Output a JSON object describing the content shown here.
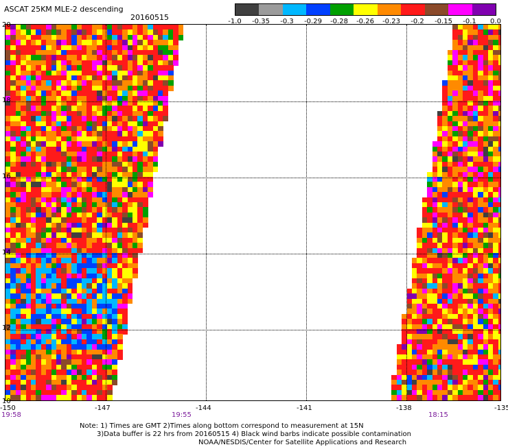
{
  "title": "ASCAT 25KM MLE-2 descending",
  "date": "20160515",
  "legend": {
    "labels": [
      "-1.0",
      "-0.35",
      "-0.3",
      "-0.29",
      "-0.28",
      "-0.26",
      "-0.23",
      "-0.2",
      "-0.15",
      "-0.1",
      "0.0"
    ],
    "colors": [
      "#404040",
      "#9b9b9b",
      "#00b8ff",
      "#0040ff",
      "#00a000",
      "#ffff00",
      "#ff8a00",
      "#ff1a1a",
      "#8b4a2a",
      "#ff00ff",
      "#8000b0"
    ]
  },
  "axes": {
    "lat_labels": [
      "20",
      "18",
      "16",
      "14",
      "12",
      "10"
    ],
    "lon_labels": [
      "-150",
      "-147",
      "-144",
      "-141",
      "-138",
      "-135"
    ],
    "time_labels": [
      "19:58",
      "19:55",
      "18:15"
    ]
  },
  "notes": [
    "Note: 1) Times are GMT 2)Times along bottom correspond to measurement at 15N",
    "3)Data buffer is 22 hrs from 20160515 4) Black wind barbs indicate possible contamination",
    "NOAA/NESDIS/Center for Satellite Applications and Research"
  ]
}
